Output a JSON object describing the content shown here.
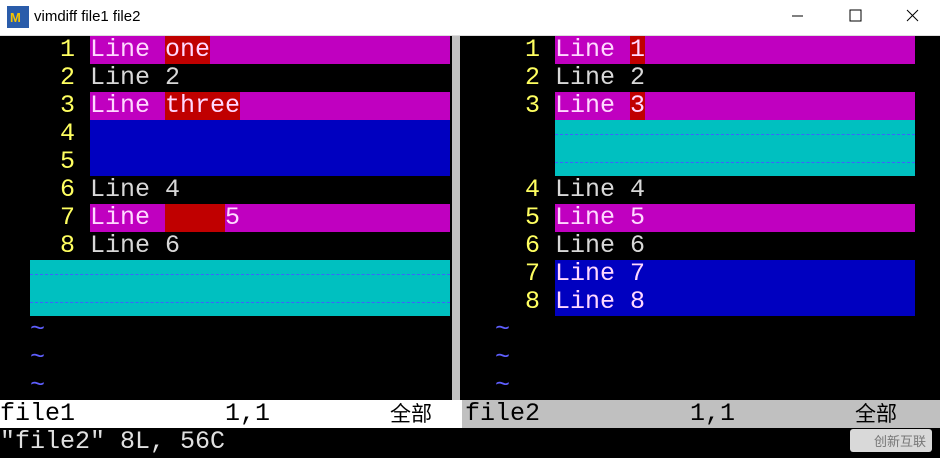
{
  "window": {
    "title": "vimdiff file1 file2"
  },
  "left_pane": {
    "lines": [
      {
        "number": 1,
        "style": "change",
        "parts": [
          {
            "text": "Line "
          },
          {
            "text": "one",
            "hl": "text"
          }
        ]
      },
      {
        "number": 2,
        "style": "plain",
        "parts": [
          {
            "text": "Line 2"
          }
        ]
      },
      {
        "number": 3,
        "style": "change",
        "parts": [
          {
            "text": "Line "
          },
          {
            "text": "three",
            "hl": "text"
          }
        ]
      },
      {
        "number": 4,
        "style": "add"
      },
      {
        "number": 5,
        "style": "add"
      },
      {
        "number": 6,
        "style": "plain",
        "parts": [
          {
            "text": "Line 4"
          }
        ]
      },
      {
        "number": 7,
        "style": "change",
        "parts": [
          {
            "text": "Line "
          },
          {
            "text": "    ",
            "hl": "text"
          },
          {
            "text": "5"
          }
        ]
      },
      {
        "number": 8,
        "style": "plain",
        "parts": [
          {
            "text": "Line 6"
          }
        ]
      },
      {
        "style": "filler"
      },
      {
        "style": "filler"
      },
      {
        "tilde": "~"
      },
      {
        "tilde": "~"
      },
      {
        "tilde": "~"
      }
    ]
  },
  "right_pane": {
    "lines": [
      {
        "number": 1,
        "style": "change",
        "parts": [
          {
            "text": "Line "
          },
          {
            "text": "1",
            "hl": "text"
          }
        ]
      },
      {
        "number": 2,
        "style": "plain",
        "parts": [
          {
            "text": "Line 2"
          }
        ]
      },
      {
        "number": 3,
        "style": "change",
        "parts": [
          {
            "text": "Line "
          },
          {
            "text": "3",
            "hl": "text"
          }
        ]
      },
      {
        "style": "filler"
      },
      {
        "style": "filler"
      },
      {
        "number": 4,
        "style": "plain",
        "parts": [
          {
            "text": "Line 4"
          }
        ]
      },
      {
        "number": 5,
        "style": "change",
        "parts": [
          {
            "text": "Line 5"
          }
        ]
      },
      {
        "number": 6,
        "style": "plain",
        "parts": [
          {
            "text": "Line 6"
          }
        ]
      },
      {
        "number": 7,
        "style": "add",
        "parts": [
          {
            "text": "Line 7"
          }
        ]
      },
      {
        "number": 8,
        "style": "add",
        "parts": [
          {
            "text": "Line 8"
          }
        ]
      },
      {
        "tilde": "~"
      },
      {
        "tilde": "~"
      },
      {
        "tilde": "~"
      }
    ]
  },
  "status": {
    "left": {
      "name": "file1",
      "position": "1,1",
      "scroll": "全部"
    },
    "right": {
      "name": "file2",
      "position": "1,1",
      "scroll": "全部"
    }
  },
  "command_line": "\"file2\" 8L, 56C",
  "watermark": "创新互联"
}
